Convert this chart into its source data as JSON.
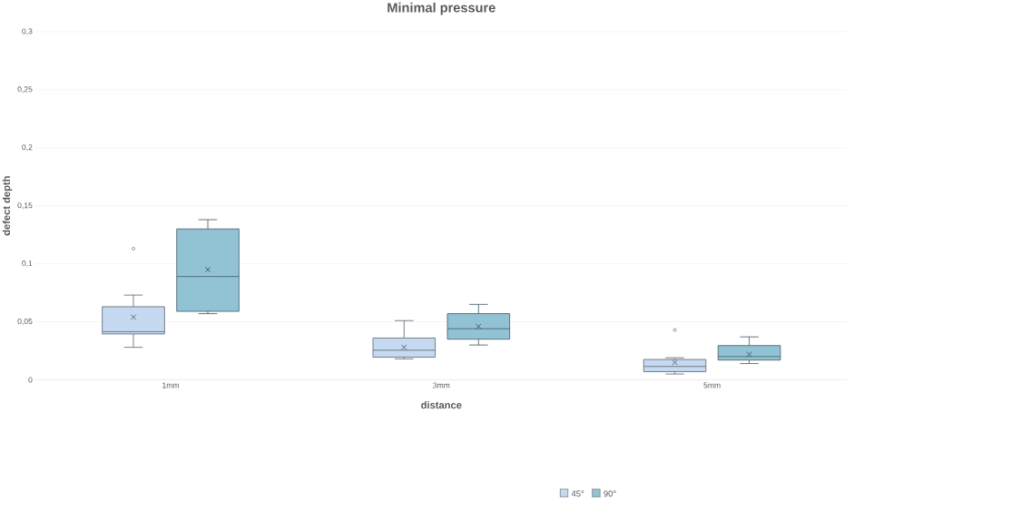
{
  "chart_data": {
    "type": "box",
    "title": "Minimal pressure",
    "xlabel": "distance",
    "ylabel": "defect depth",
    "categories": [
      "1mm",
      "3mm",
      "5mm"
    ],
    "series": [
      {
        "name": "45°",
        "color": "#c5d9f1",
        "boxes": [
          {
            "low": 0.028,
            "q1": 0.0395,
            "median": 0.0415,
            "q3": 0.063,
            "high": 0.073,
            "mean": 0.054,
            "outliers": [
              0.113
            ]
          },
          {
            "low": 0.018,
            "q1": 0.0195,
            "median": 0.0255,
            "q3": 0.036,
            "high": 0.051,
            "mean": 0.028
          },
          {
            "low": 0.005,
            "q1": 0.007,
            "median": 0.0115,
            "q3": 0.0175,
            "high": 0.019,
            "mean": 0.015,
            "outliers": [
              0.043
            ]
          }
        ]
      },
      {
        "name": "90°",
        "color": "#92c3d4",
        "boxes": [
          {
            "low": 0.057,
            "q1": 0.059,
            "median": 0.089,
            "q3": 0.13,
            "high": 0.138,
            "mean": 0.095
          },
          {
            "low": 0.03,
            "q1": 0.035,
            "median": 0.044,
            "q3": 0.057,
            "high": 0.065,
            "mean": 0.046
          },
          {
            "low": 0.014,
            "q1": 0.017,
            "median": 0.02,
            "q3": 0.0295,
            "high": 0.037,
            "mean": 0.022
          }
        ]
      }
    ],
    "ylim": [
      0,
      0.3
    ],
    "yticks": [
      0,
      {
        "value": 0.05,
        "label": "0,05"
      },
      {
        "value": 0.1,
        "label": "0,1"
      },
      {
        "value": 0.15,
        "label": "0,15"
      },
      {
        "value": 0.2,
        "label": "0,2"
      },
      {
        "value": 0.25,
        "label": "0,25"
      },
      {
        "value": 0.3,
        "label": "0,3"
      }
    ],
    "grid": "y",
    "legend": "bottom"
  }
}
